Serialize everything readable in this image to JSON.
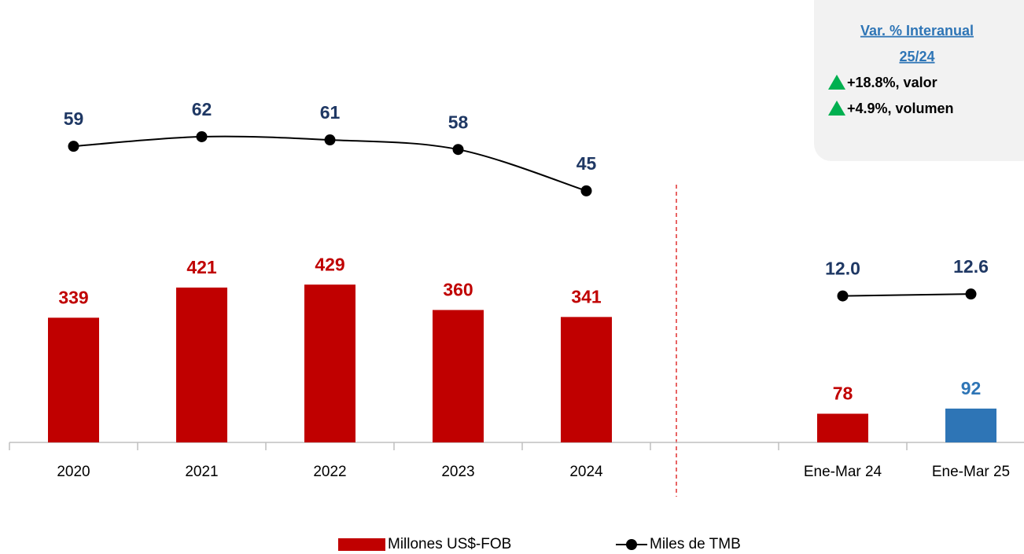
{
  "chart_data": {
    "type": "bar_line",
    "categories": [
      "2020",
      "2021",
      "2022",
      "2023",
      "2024",
      null,
      "Ene-Mar 24",
      "Ene-Mar 25"
    ],
    "series": [
      {
        "name": "Millones US$-FOB",
        "type": "bar",
        "color": "#c00000",
        "colors": [
          "#c00000",
          "#c00000",
          "#c00000",
          "#c00000",
          "#c00000",
          null,
          "#c00000",
          "#2e75b6"
        ],
        "values": [
          339,
          421,
          429,
          360,
          341,
          null,
          78,
          92
        ]
      },
      {
        "name": "Miles de TMB",
        "type": "line",
        "axis": "y2",
        "color": "#000000",
        "label_color": "#1f3864",
        "values": [
          59,
          62,
          61,
          58,
          45,
          null,
          12.0,
          12.6
        ],
        "value_labels": [
          "59",
          "62",
          "61",
          "58",
          "45",
          null,
          "12.0",
          "12.6"
        ]
      }
    ],
    "ylim": [
      0,
      1160
    ],
    "y2lim": [
      -34,
      100
    ],
    "annotation": {
      "title": "Var. % Interanual",
      "subtitle": "25/24",
      "items": [
        "+18.8%, valor",
        "+4.9%, volumen"
      ]
    }
  }
}
